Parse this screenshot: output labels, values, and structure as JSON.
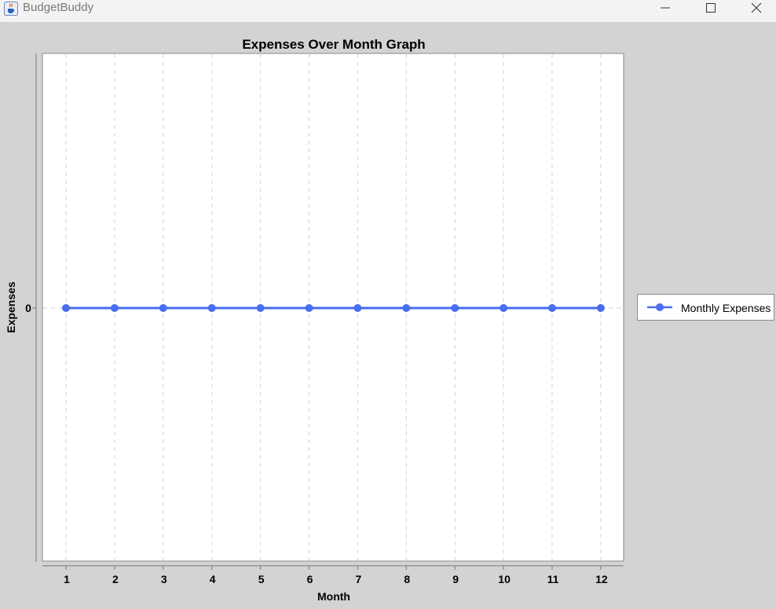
{
  "window": {
    "title": "BudgetBuddy",
    "app_icon": "java-cup-icon",
    "controls": [
      "minimize-icon",
      "maximize-icon",
      "close-icon"
    ]
  },
  "chart_data": {
    "type": "line",
    "title": "Expenses Over Month Graph",
    "xlabel": "Month",
    "ylabel": "Expenses",
    "x": [
      1,
      2,
      3,
      4,
      5,
      6,
      7,
      8,
      9,
      10,
      11,
      12
    ],
    "y_ticks": [
      0
    ],
    "series": [
      {
        "name": "Monthly Expenses",
        "values": [
          0,
          0,
          0,
          0,
          0,
          0,
          0,
          0,
          0,
          0,
          0,
          0
        ],
        "color": "#4a6cf0"
      }
    ],
    "grid": "vertical dashed",
    "legend_position": "right",
    "plot_background": "#ffffff"
  }
}
